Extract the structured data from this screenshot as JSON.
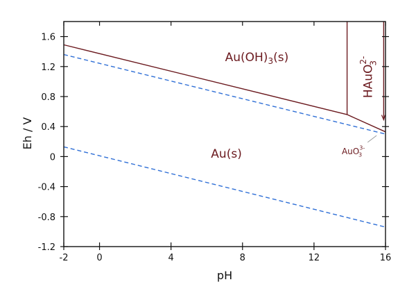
{
  "chart_data": {
    "type": "line",
    "title": "",
    "xlabel": "pH",
    "ylabel": "Eh / V",
    "xlim": [
      -2,
      16
    ],
    "ylim": [
      -1.2,
      1.8
    ],
    "x_ticks": [
      -2,
      0,
      4,
      8,
      12,
      16
    ],
    "y_ticks": [
      -1.2,
      -0.8,
      -0.4,
      0,
      0.4,
      0.8,
      1.2,
      1.6
    ],
    "grid": false,
    "colors": {
      "boundary": "#6b1a1f",
      "water_line": "#2f6fd6",
      "axis": "#111111"
    },
    "boundaries": [
      {
        "id": "auoh3-au",
        "points": [
          [
            -2,
            1.49
          ],
          [
            13.85,
            0.56
          ],
          [
            16,
            0.33
          ]
        ]
      },
      {
        "id": "auoh3-hauo3",
        "points": [
          [
            13.85,
            0.56
          ],
          [
            13.85,
            1.8
          ]
        ]
      },
      {
        "id": "hauo3-auo3",
        "points": [
          [
            15.9,
            0.49
          ],
          [
            15.9,
            1.8
          ]
        ]
      }
    ],
    "water_lines": [
      {
        "id": "oxygen-line",
        "points": [
          [
            -2,
            1.36
          ],
          [
            16,
            0.3
          ]
        ]
      },
      {
        "id": "hydrogen-line",
        "points": [
          [
            -2,
            0.13
          ],
          [
            16,
            -0.94
          ]
        ]
      }
    ],
    "region_labels": [
      {
        "id": "auoh3",
        "base": "Au(OH)",
        "sub": "3",
        "sup": "",
        "suffix": "(s)",
        "x": 8.8,
        "y": 1.32
      },
      {
        "id": "au",
        "base": "Au(s)",
        "sub": "",
        "sup": "",
        "suffix": "",
        "x": 7.1,
        "y": 0.03
      },
      {
        "id": "hauo3",
        "base": "HAuO",
        "sub": "3",
        "sup": "2-",
        "suffix": "",
        "x": 15.05,
        "y": 1.06,
        "rotate": -90
      },
      {
        "id": "auo3",
        "base": "AuO",
        "sub": "3",
        "sup": "3-",
        "suffix": "",
        "x": 14.2,
        "y": 0.07
      }
    ],
    "leader": {
      "from": [
        15.0,
        0.19
      ],
      "to": [
        15.5,
        0.28
      ]
    }
  }
}
